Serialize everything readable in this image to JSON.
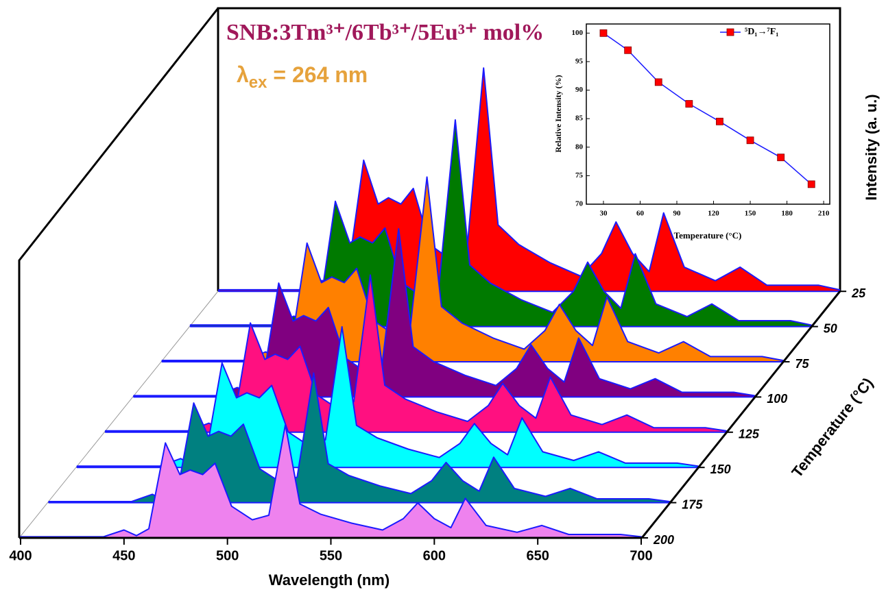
{
  "chart_data": [
    {
      "type": "waterfall",
      "title": "SNB:3Tm³⁺/6Tb³⁺/5Eu³⁺ mol%",
      "annotation": {
        "symbol": "λ",
        "subscript": "ex",
        "rest": " = 264 nm"
      },
      "xlabel": "Wavelength (nm)",
      "ylabel": "Intensity (a. u.)",
      "zlabel": "Temperature (°C)",
      "xlim": [
        400,
        700
      ],
      "xticks": [
        400,
        450,
        500,
        550,
        600,
        650,
        700
      ],
      "ylim": [
        0,
        100
      ],
      "x": [
        400,
        440,
        450,
        456,
        462,
        470,
        477,
        482,
        488,
        494,
        502,
        512,
        520,
        528,
        535,
        545,
        560,
        575,
        585,
        592,
        600,
        608,
        615,
        625,
        640,
        652,
        665,
        690,
        700
      ],
      "series": [
        {
          "name": "25",
          "color": "#ff0000",
          "values": [
            0.7,
            0.7,
            4.8,
            1.4,
            5.5,
            58,
            38.6,
            41.4,
            38.6,
            45.5,
            20.6,
            14.1,
            18.8,
            98.8,
            29.4,
            20.7,
            12.7,
            6.7,
            16.7,
            30.7,
            16.7,
            8.7,
            34.7,
            10.7,
            4.7,
            10.7,
            2.7,
            2.7,
            0.7
          ]
        },
        {
          "name": "50",
          "color": "#007a00",
          "values": [
            0.7,
            0.7,
            4.6,
            1.3,
            5.3,
            55.4,
            37,
            39.6,
            37,
            43.6,
            19.5,
            13.3,
            17.4,
            91.4,
            27.2,
            19.2,
            11.8,
            6.3,
            15.5,
            28.5,
            15.5,
            8.1,
            32.2,
            10,
            4.4,
            10,
            2.6,
            2.6,
            0.7
          ]
        },
        {
          "name": "75",
          "color": "#ff8000",
          "values": [
            0.6,
            0.6,
            4.4,
            1.3,
            5,
            52.5,
            35,
            37.5,
            35,
            41.3,
            18.3,
            12.1,
            15.7,
            81.7,
            24.4,
            17.1,
            10.5,
            5.6,
            13.8,
            25.4,
            13.8,
            7.2,
            28.7,
            8.9,
            3.9,
            8.9,
            2.3,
            2.3,
            0.6
          ]
        },
        {
          "name": "100",
          "color": "#800080",
          "values": [
            0.6,
            0.6,
            4.2,
            1.2,
            4.8,
            50.4,
            33.6,
            36,
            33.6,
            39.6,
            17.4,
            11.1,
            14.4,
            74.4,
            22.2,
            15.6,
            9.6,
            5.1,
            12.6,
            23.1,
            12.6,
            6.6,
            26.1,
            8.1,
            3.6,
            8.1,
            2.1,
            2.1,
            0.6
          ]
        },
        {
          "name": "125",
          "color": "#ff1080",
          "values": [
            0.6,
            0.6,
            4,
            1.2,
            4.6,
            48.3,
            32.2,
            34.5,
            32.2,
            38,
            16.6,
            10.5,
            13.5,
            69.5,
            20.8,
            14.6,
            9,
            4.8,
            11.8,
            21.6,
            11.8,
            6.2,
            24.4,
            7.6,
            3.4,
            7.6,
            2,
            2,
            0.6
          ]
        },
        {
          "name": "150",
          "color": "#00ffff",
          "values": [
            0.6,
            0.6,
            3.9,
            1.1,
            4.4,
            46.2,
            30.8,
            33,
            30.8,
            36.3,
            15.7,
            9.6,
            12.2,
            62.2,
            18.6,
            13.1,
            8.1,
            4.4,
            10.6,
            19.4,
            10.6,
            5.6,
            21.9,
            6.9,
            3.1,
            6.9,
            1.9,
            1.9,
            0.6
          ]
        },
        {
          "name": "175",
          "color": "#008080",
          "values": [
            0.5,
            0.5,
            3.7,
            1,
            4.2,
            44.1,
            29.4,
            31.5,
            29.4,
            34.7,
            14.9,
            9,
            11.3,
            57.3,
            17.2,
            12,
            7.4,
            4,
            9.7,
            17.8,
            9.7,
            5.1,
            20.1,
            6.3,
            2.8,
            6.3,
            1.7,
            1.7,
            0.5
          ]
        },
        {
          "name": "200",
          "color": "#ee82ee",
          "values": [
            0.5,
            0.5,
            3.5,
            1,
            4,
            42,
            28,
            30,
            28,
            33,
            14,
            8,
            10,
            50,
            15,
            10.5,
            6.5,
            3.5,
            8.5,
            15.5,
            8.5,
            4.5,
            17.5,
            5.5,
            2.5,
            5.5,
            1.5,
            1.5,
            0.5
          ]
        }
      ]
    },
    {
      "type": "line",
      "xlabel": "Temperature (°C)",
      "ylabel": "Relative Intensity (%)",
      "xlim": [
        16,
        215
      ],
      "xticks": [
        30,
        60,
        90,
        120,
        150,
        180,
        210
      ],
      "ylim": [
        70,
        101.6
      ],
      "yticks": [
        70,
        75,
        80,
        85,
        90,
        95,
        100
      ],
      "x": [
        30,
        50,
        75,
        100,
        125,
        150,
        175,
        200
      ],
      "series": [
        {
          "name": "⁵D₁→⁷F₁",
          "color": "#1a1aff",
          "marker_color": "#ff0000",
          "values": [
            100,
            97,
            91.4,
            87.6,
            84.5,
            81.2,
            78.2,
            73.5
          ]
        }
      ],
      "legend": "top-right"
    }
  ]
}
